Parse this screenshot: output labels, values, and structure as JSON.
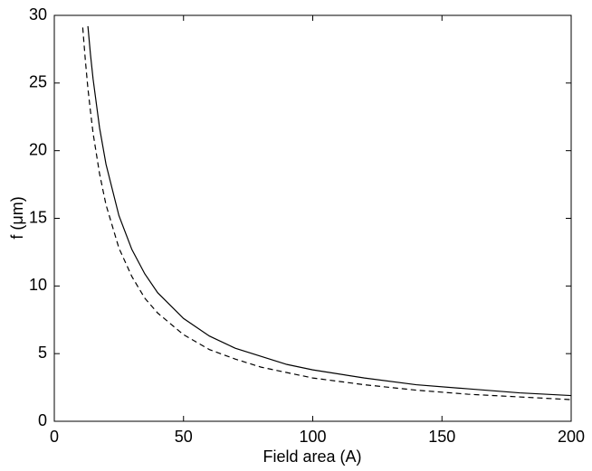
{
  "chart_data": {
    "type": "line",
    "x_label": "Field area (A)",
    "y_label": "f (μm)",
    "x": [
      11,
      12,
      13,
      14,
      15,
      17.5,
      20,
      25,
      30,
      35,
      40,
      50,
      60,
      70,
      80,
      90,
      100,
      120,
      140,
      160,
      180,
      200
    ],
    "series": [
      {
        "color": "#000000",
        "line_style": "solid",
        "values": [
          null,
          null,
          29.2,
          27.1,
          25.3,
          21.7,
          19.0,
          15.2,
          12.7,
          10.9,
          9.5,
          7.6,
          6.3,
          5.4,
          4.8,
          4.2,
          3.8,
          3.2,
          2.7,
          2.4,
          2.1,
          1.9
        ]
      },
      {
        "color": "#000000",
        "line_style": "dashed",
        "values": [
          29.1,
          26.7,
          24.6,
          22.9,
          21.3,
          18.3,
          16.0,
          12.8,
          10.7,
          9.1,
          8.0,
          6.4,
          5.3,
          4.6,
          4.0,
          3.6,
          3.2,
          2.7,
          2.3,
          2.0,
          1.8,
          1.6
        ]
      }
    ],
    "xlim": [
      0,
      200
    ],
    "xticks": [
      0,
      50,
      100,
      150,
      200
    ],
    "ylim": [
      0,
      30
    ],
    "yticks": [
      0,
      5,
      10,
      15,
      20,
      25,
      30
    ],
    "grid": false
  }
}
